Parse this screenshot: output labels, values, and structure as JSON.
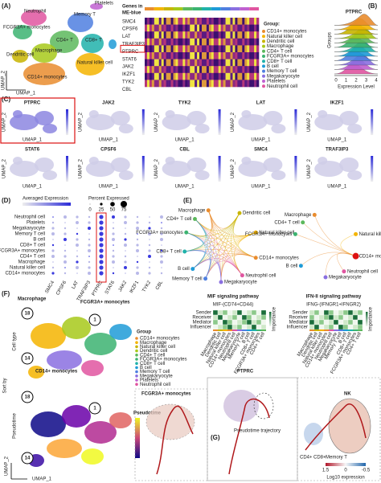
{
  "panel_a": {
    "label": "(A)",
    "clusters": [
      "Platelets",
      "Neutrophil",
      "FCGR3A+ monocytes",
      "Memory T",
      "CD4+ T",
      "CD8+ T",
      "Macrophage",
      "Dendritic cell",
      "Natural killer cell",
      "CD14+ monocytes"
    ],
    "x_axis": "UMAP_1",
    "y_axis": "UMAP_2",
    "heatmap_title": "Genes in",
    "heatmap_subtitle": "ME-blue",
    "genes": [
      "SMC4",
      "CPSF6",
      "LAT",
      "TRAF3IP3",
      "PTPRC",
      "STAT6",
      "JAK2",
      "IKZF1",
      "TYK2",
      "CBL"
    ],
    "group_title": "Group:",
    "groups": [
      "CD14+ monocytes",
      "Natural killer cell",
      "Dendritic cell",
      "Macrophage",
      "CD4+ T cell",
      "FCGR3A+ monocytes",
      "CD8+ T cell",
      "B cell",
      "Memory T cell",
      "Megakaryocyte",
      "Platelets",
      "Neutrophil cell"
    ],
    "group_colors": [
      "#e98c2e",
      "#f4b400",
      "#c8b400",
      "#a7c91a",
      "#5cb85c",
      "#3cb371",
      "#20b2aa",
      "#1e9bd7",
      "#4f7fe0",
      "#8a6fe0",
      "#c060d0",
      "#e055a0"
    ]
  },
  "panel_b": {
    "label": "(B)",
    "title": "PTPRC",
    "y_axis": "Groups",
    "x_axis": "Expression Level",
    "xticks": [
      "0",
      "1",
      "2",
      "3",
      "4"
    ]
  },
  "panel_c": {
    "label": "(C)",
    "genes": [
      "PTPRC",
      "JAK2",
      "TYK2",
      "LAT",
      "IKZF1",
      "STAT6",
      "CPSF6",
      "CBL",
      "SMC4",
      "TRAF3IP3"
    ],
    "x_axis": "UMAP_1",
    "y_axis": "UMAP_2"
  },
  "panel_d": {
    "label": "(D)",
    "color_legend": "Averaged Expression",
    "size_legend": "Percent Expressed",
    "size_ticks": [
      "0",
      "25",
      "50",
      "75"
    ],
    "rows": [
      "Neutrophil cell",
      "Platelets",
      "Megakaryocyte",
      "Memory T cell",
      "B cell",
      "CD8+ T cell",
      "FCGR3A+ monocytes",
      "CD4+ T cell",
      "Macrophage",
      "Natural killer cell",
      "CD14+ monocytes"
    ],
    "columns": [
      "SMC4",
      "CPSF6",
      "LAT",
      "TRAF3IP3",
      "PTPRC",
      "STAT6",
      "JAK2",
      "IKZF1",
      "TYK2",
      "CBL"
    ]
  },
  "panel_e": {
    "label": "(E)",
    "nodes": [
      "Macrophage",
      "Dendritic cell",
      "Natural killer cell",
      "CD14+ monocytes",
      "Neutrophil cell",
      "Megakaryocyte",
      "Memory T cell",
      "B cell",
      "CD8+ T cell",
      "FCGR3A+ monocytes",
      "CD4+ T cell"
    ],
    "mif_title": "MIF signaling pathway",
    "mif_subtitle": "MIF-(CD74+CD44)",
    "ifn_title": "IFN-II signaling pathway",
    "ifn_subtitle": "IFNG-(IFNGR1+IFNGR2)",
    "roles": [
      "Sender",
      "Receiver",
      "Mediator",
      "Influencer"
    ],
    "importance": "Importance"
  },
  "panel_f": {
    "label": "(F)",
    "annotations": [
      "Macrophage",
      "FCGR3A+ monocytes",
      "CD14+ monocytes"
    ],
    "nodes": [
      "18",
      "1",
      "14"
    ],
    "sort_by": "Sort by",
    "cell_type": "Cell type",
    "pseudotime_row": "Pseudotime",
    "group_title": "Group",
    "groups": [
      "CD14+ monocytes",
      "Macrophage",
      "Natural killer cell",
      "Dendritic cell",
      "CD4+ T cell",
      "FCGR3A+ monocytes",
      "CD8+ T cell",
      "B cell",
      "Memory T cell",
      "Megakaryocyte",
      "Platelets",
      "Neutrophil cell"
    ],
    "colorbar_title": "Pseudotime",
    "x_axis": "UMAP_1",
    "y_axis": "UMAP_2"
  },
  "panel_g": {
    "label": "(G)",
    "title": "PTPRC",
    "fcgr3a": "FCGR3A+ monocytes",
    "trajectory": "Pseudotime trajectory",
    "nk": "NK",
    "cd4": "CD4+",
    "cd8": "CD8+",
    "memory": "Memory T",
    "colorbar_ticks": [
      "1.5",
      "0",
      "-0.5"
    ],
    "colorbar_title": "Log10 expression"
  }
}
